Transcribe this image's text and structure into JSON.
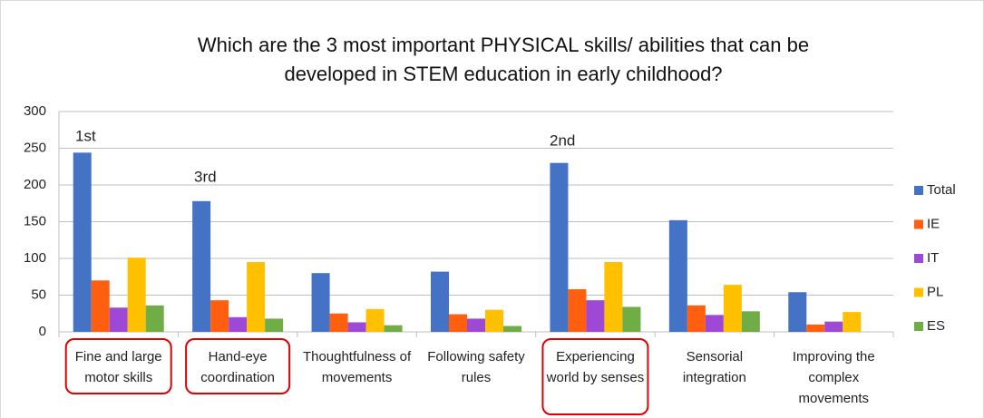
{
  "chart_data": {
    "type": "bar",
    "title": "Which are the 3 most important PHYSICAL skills/ abilities that can be developed in STEM education in early childhood?",
    "categories": [
      "Fine and large motor skills",
      "Hand-eye coordination",
      "Thoughtfulness of movements",
      "Following safety rules",
      "Experiencing world by senses",
      "Sensorial integration",
      "Improving the complex movements"
    ],
    "series": [
      {
        "name": "Total",
        "color": "#4472c4",
        "values": [
          244,
          178,
          80,
          82,
          230,
          152,
          54
        ]
      },
      {
        "name": "IE",
        "color": "#ff5f0f",
        "values": [
          70,
          43,
          25,
          24,
          58,
          36,
          10
        ]
      },
      {
        "name": "IT",
        "color": "#9e48d6",
        "values": [
          33,
          20,
          13,
          18,
          43,
          23,
          14
        ]
      },
      {
        "name": "PL",
        "color": "#ffc000",
        "values": [
          101,
          95,
          31,
          30,
          95,
          64,
          27
        ]
      },
      {
        "name": "ES",
        "color": "#70ad47",
        "values": [
          36,
          18,
          9,
          8,
          34,
          28,
          0
        ]
      }
    ],
    "annotations": [
      "1st",
      "3rd",
      "2nd"
    ],
    "ylim": [
      0,
      300
    ],
    "yticks": [
      0,
      50,
      100,
      150,
      200,
      250,
      300
    ],
    "grid": true,
    "legend": "right"
  }
}
